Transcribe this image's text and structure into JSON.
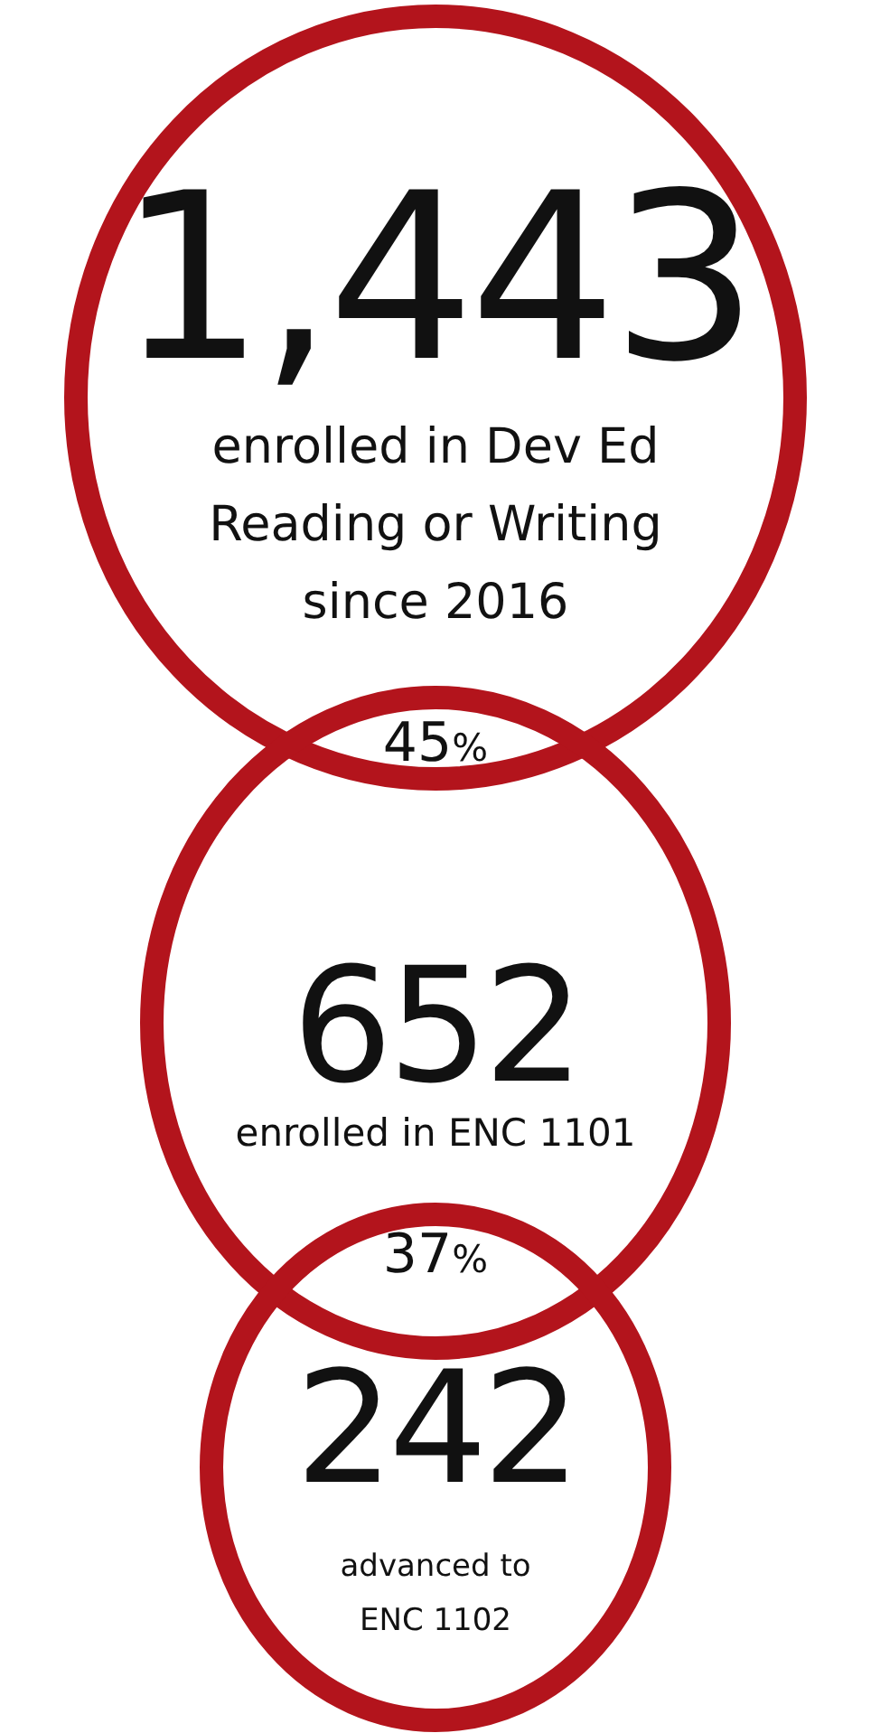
{
  "chart_data": {
    "type": "other",
    "categories": [
      "enrolled in Dev Ed Reading or Writing since 2016",
      "enrolled in ENC 1101",
      "advanced to ENC 1102"
    ],
    "values": [
      1443,
      652,
      242
    ],
    "value_labels": [
      "1,443",
      "652",
      "242"
    ],
    "color": "#b3141c",
    "annotations": [
      "45%",
      "37%"
    ]
  }
}
